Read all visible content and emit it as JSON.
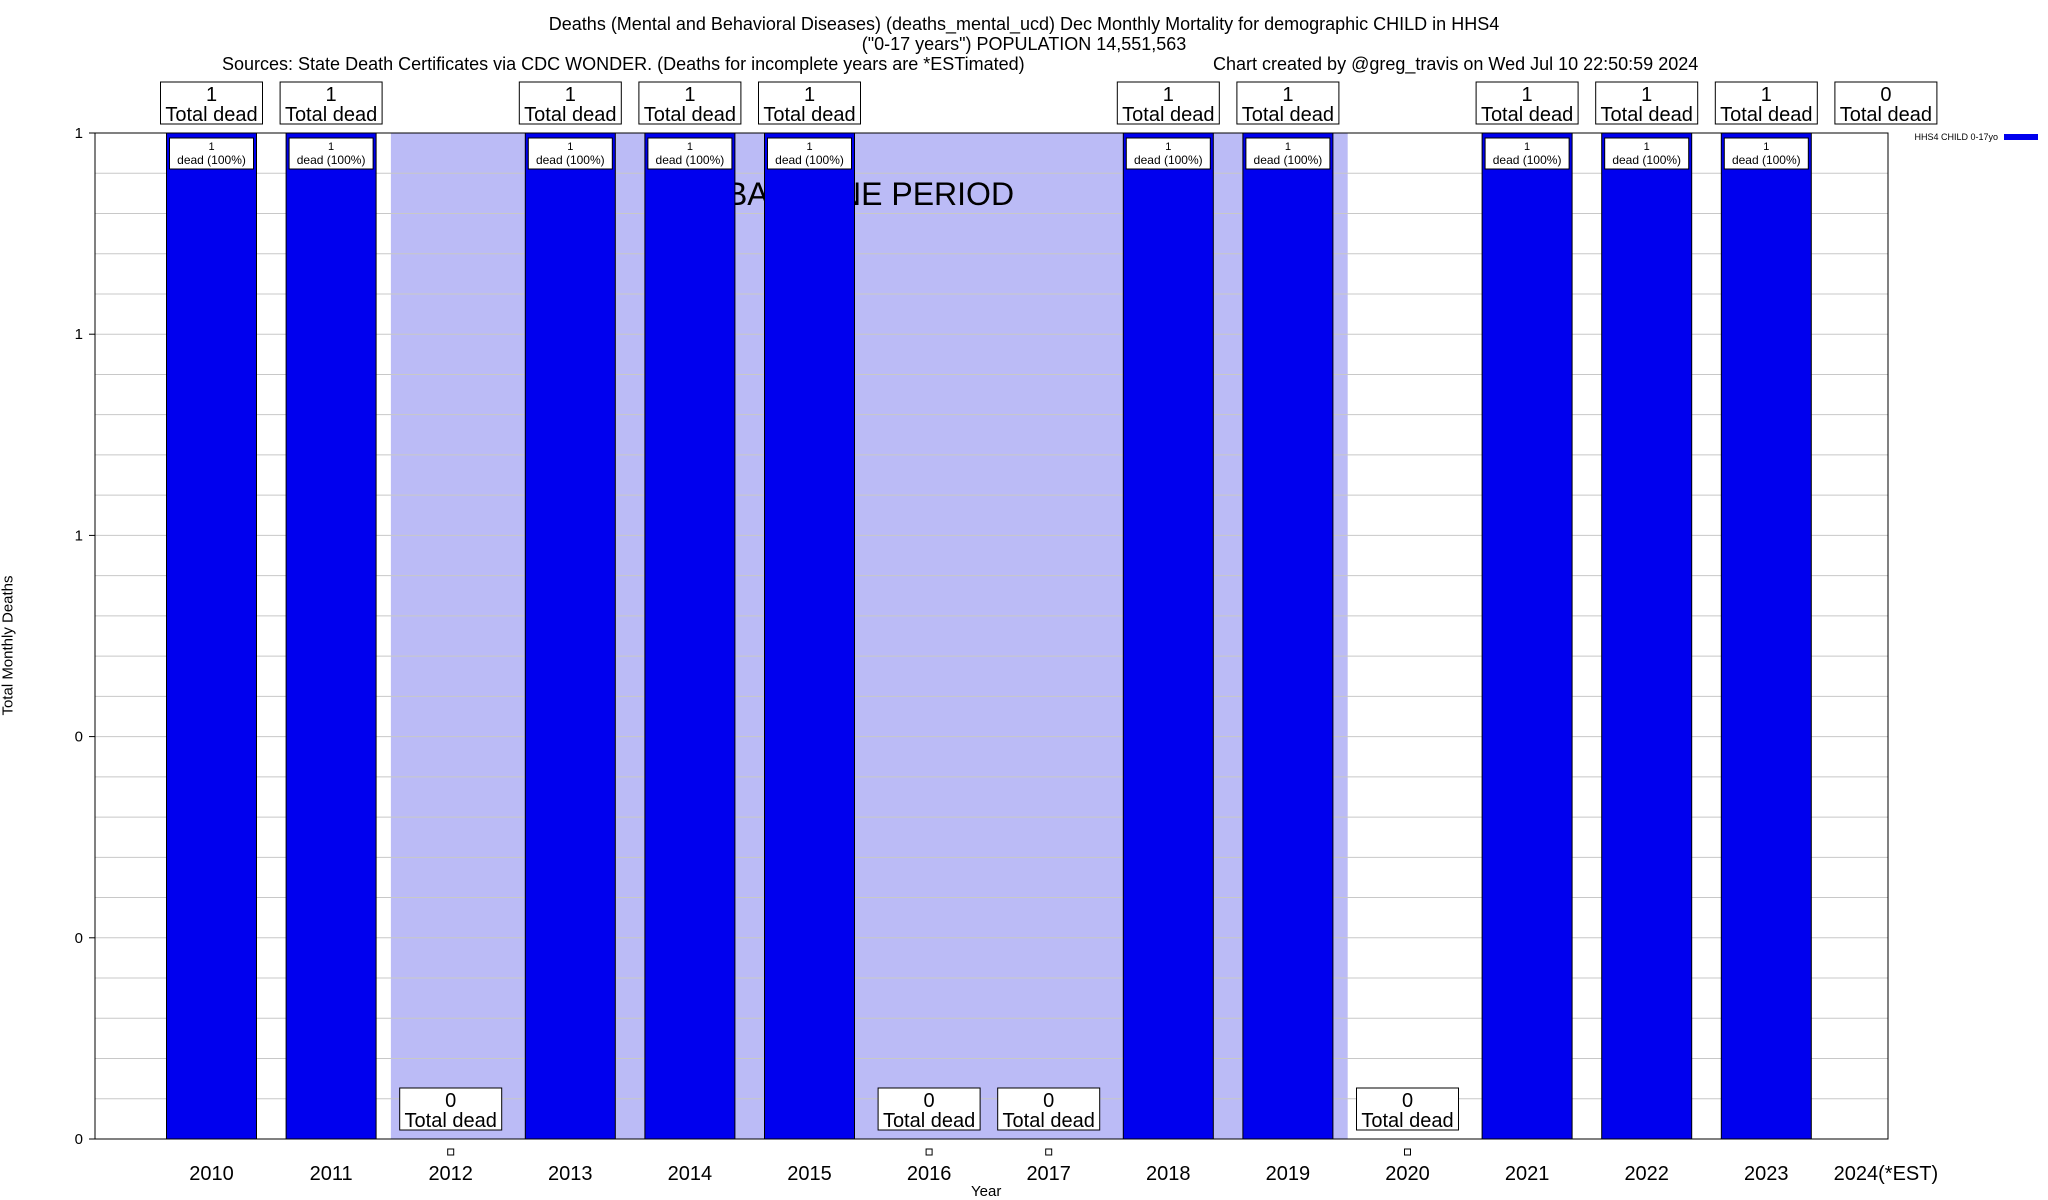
{
  "title_line1": "Deaths (Mental and Behavioral Diseases) (deaths_mental_ucd) Dec Monthly Mortality for demographic CHILD in HHS4",
  "title_line2": "(\"0-17 years\") POPULATION 14,551,563",
  "sources": "Sources: State Death Certificates via CDC WONDER. (Deaths for incomplete years are *ESTimated)",
  "credit": "Chart created by @greg_travis on Wed Jul 10 22:50:59 2024",
  "chart_data": {
    "type": "bar",
    "title": "Deaths (Mental and Behavioral Diseases) (deaths_mental_ucd) Dec Monthly Mortality for demographic CHILD in HHS4",
    "xlabel": "Year",
    "ylabel": "Total Monthly Deaths",
    "categories": [
      "2010",
      "2011",
      "2012",
      "2013",
      "2014",
      "2015",
      "2016",
      "2017",
      "2018",
      "2019",
      "2020",
      "2021",
      "2022",
      "2023",
      "2024(*EST)"
    ],
    "series": [
      {
        "name": "HHS4 CHILD 0-17yo",
        "color": "#0000ee",
        "values": [
          1,
          1,
          0,
          1,
          1,
          1,
          0,
          0,
          1,
          1,
          0,
          1,
          1,
          1,
          0
        ]
      }
    ],
    "ylim": [
      0,
      1
    ],
    "ytick_labels": [
      "0",
      "0",
      "0",
      "1",
      "1",
      "1"
    ],
    "total_label_suffix": "Total dead",
    "bar_label_suffix": "dead (100%)",
    "baseline_label": "BASELINE PERIOD",
    "baseline_range": [
      "2012",
      "2019"
    ],
    "baseline_color": "#bbbbf6",
    "grid": true,
    "legend_position": "top-right"
  }
}
